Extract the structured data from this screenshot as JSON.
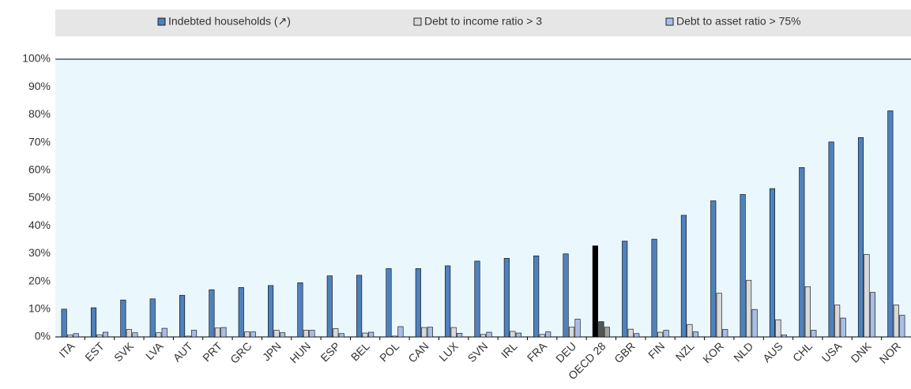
{
  "chart_data": {
    "type": "bar",
    "categories": [
      "ITA",
      "EST",
      "SVK",
      "LVA",
      "AUT",
      "PRT",
      "GRC",
      "JPN",
      "HUN",
      "ESP",
      "BEL",
      "POL",
      "CAN",
      "LUX",
      "SVN",
      "IRL",
      "FRA",
      "DEU",
      "OECD 28",
      "GBR",
      "FIN",
      "NZL",
      "KOR",
      "NLD",
      "AUS",
      "CHL",
      "USA",
      "DNK",
      "NOR"
    ],
    "series": [
      {
        "name": "Indebted households (↗)",
        "color": "#4f81bd",
        "values": [
          10,
          10.5,
          13.3,
          13.7,
          15,
          17,
          17.8,
          18.5,
          19.5,
          22,
          22.2,
          24.6,
          24.6,
          25.6,
          27.3,
          28.3,
          29.2,
          29.9,
          32.8,
          34.5,
          35.2,
          43.8,
          49,
          51.3,
          53.4,
          61,
          70.2,
          71.8,
          81.4
        ]
      },
      {
        "name": "Debt to income ratio > 3",
        "color": "#d9d9d9",
        "values": [
          0.7,
          0.8,
          2.7,
          1.5,
          0.3,
          3.2,
          1.8,
          2.4,
          2.4,
          3,
          1.4,
          0.3,
          3.4,
          3.4,
          0.9,
          2,
          0.9,
          3.5,
          5.5,
          2.8,
          1.7,
          4.5,
          15.7,
          20.4,
          6.2,
          18.1,
          11.5,
          29.7,
          11.5
        ]
      },
      {
        "name": "Debt to asset ratio > 75%",
        "color": "#a9bde9",
        "values": [
          1.2,
          1.7,
          1.5,
          3.1,
          2.4,
          3.4,
          1.8,
          1.5,
          2.4,
          1.2,
          1.7,
          3.7,
          3.5,
          1.3,
          1.7,
          1.4,
          1.8,
          6.4,
          3.5,
          1.2,
          2.4,
          1.8,
          2.7,
          9.9,
          0.7,
          2.4,
          6.8,
          16,
          7.8
        ]
      }
    ],
    "highlight": {
      "index": 18,
      "colors": [
        "#000000",
        "#555555",
        "#a0a0a0"
      ]
    },
    "ylim": [
      0,
      100
    ],
    "yticks": [
      {
        "value": 0,
        "label": "0%"
      },
      {
        "value": 10,
        "label": "10%"
      },
      {
        "value": 20,
        "label": "20%"
      },
      {
        "value": 30,
        "label": "30%"
      },
      {
        "value": 40,
        "label": "40%"
      },
      {
        "value": 50,
        "label": "50%"
      },
      {
        "value": 60,
        "label": "60%"
      },
      {
        "value": 70,
        "label": "70%"
      },
      {
        "value": 80,
        "label": "80%"
      },
      {
        "value": 90,
        "label": "90%"
      },
      {
        "value": 100,
        "label": "100%"
      }
    ],
    "grid": false
  }
}
